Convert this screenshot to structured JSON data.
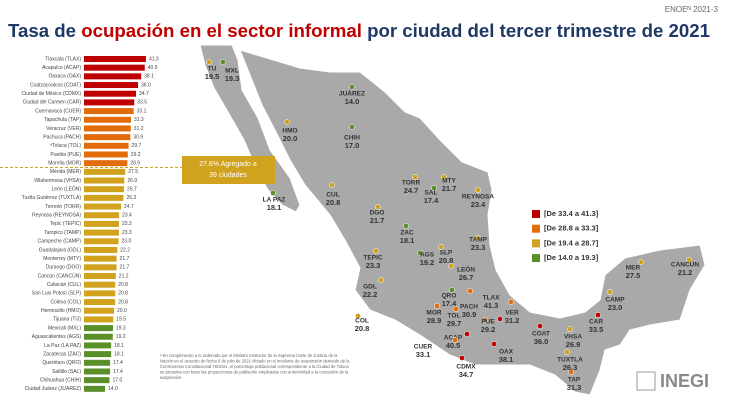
{
  "chart_data": {
    "type": "bar",
    "title_parts": [
      "Tasa de ",
      "ocupación en el sector informal",
      " por ciudad del tercer trimestre de 2021"
    ],
    "source_tag": "ENOEᴺ 2021-3",
    "categories": [
      "Tlaxcala (TLAX)",
      "Acapulco (ACAP)",
      "Oaxaca (OAX)",
      "Coatzacoalcos (COAT)",
      "Ciudad de México (CDMX)",
      "Ciudad del Carmen (CAR)",
      "Cuernavaca (CUER)",
      "Tapachula (TAP)",
      "Veracruz (VER)",
      "Pachuca (PACH)",
      "ªToluca (TOL)",
      "Puebla (PUE)",
      "Morelia (MOR)",
      "Mérida (MER)",
      "Villahermosa (VHSA)",
      "León (LEÓN)",
      "Tuxtla Gutiérrez (TUXTLA)",
      "Torreón (TORR)",
      "Reynosa (REYNOSA)",
      "Tepic (TEPIC)",
      "Tampico (TAMP)",
      "Campeche (CAMP)",
      "Guadalajara (GDL)",
      "Monterrey (MTY)",
      "Durango (DGO)",
      "Cancún (CANCÚN)",
      "Culiacán (CUL)",
      "San Luis Potosí (SLP)",
      "Colima (COL)",
      "Hermosillo (HMO)",
      "Tijuana (TIJ)",
      "Mexicali (MXL)",
      "Aguascalientes (AGS)",
      "La Paz (LA PAZ)",
      "Zacatecas (ZAC)",
      "Querétaro (QRO)",
      "Saltillo (SAL)",
      "Chihuahua (CHIH)",
      "Ciudad Juárez (JUAREZ)"
    ],
    "values": [
      41.3,
      40.5,
      38.1,
      36.0,
      34.7,
      33.5,
      33.1,
      31.3,
      31.2,
      30.9,
      29.7,
      29.2,
      28.9,
      27.5,
      26.9,
      26.7,
      26.3,
      24.7,
      23.4,
      23.3,
      23.3,
      23.0,
      22.2,
      21.7,
      21.7,
      21.2,
      20.8,
      20.8,
      20.8,
      20.0,
      19.5,
      19.3,
      19.2,
      18.1,
      18.1,
      17.4,
      17.4,
      17.0,
      14.0
    ],
    "value_labels": [
      "41.3",
      "40.5",
      "38.1",
      "36.0",
      "34.7",
      "33.5",
      "33.1",
      "31.3",
      "31.2",
      "30.9",
      "29.7",
      "29.2",
      "28.9",
      "27.5",
      "26.9",
      "26.7",
      "26.3",
      "24.7",
      "23.4",
      "23.3",
      "23.3",
      "23.0",
      "22.2",
      "21.7",
      "21.7",
      "21.2",
      "20.8",
      "20.8",
      "20.8",
      "20.0",
      "19.5",
      "19.3",
      "19.2",
      "18.1",
      "18.1",
      "17.4",
      "17.4",
      "17.0",
      "14.0"
    ],
    "colors": [
      "#c00000",
      "#c00000",
      "#c00000",
      "#c00000",
      "#c00000",
      "#c00000",
      "#e36c0a",
      "#e36c0a",
      "#e36c0a",
      "#e36c0a",
      "#e36c0a",
      "#e36c0a",
      "#e36c0a",
      "#d1a21e",
      "#d1a21e",
      "#d1a21e",
      "#d1a21e",
      "#d1a21e",
      "#d1a21e",
      "#d1a21e",
      "#d1a21e",
      "#d1a21e",
      "#d1a21e",
      "#d1a21e",
      "#d1a21e",
      "#d1a21e",
      "#d1a21e",
      "#d1a21e",
      "#d1a21e",
      "#d1a21e",
      "#d1a21e",
      "#5a8f29",
      "#5a8f29",
      "#5a8f29",
      "#5a8f29",
      "#5a8f29",
      "#5a8f29",
      "#5a8f29",
      "#5a8f29"
    ],
    "annotation": [
      "27.6% Agregado a",
      "39 ciudades"
    ],
    "legend": [
      {
        "label": "[De 33.4 a 41.3]",
        "color": "#c00000"
      },
      {
        "label": "[De 28.8 a 33.3]",
        "color": "#e36c0a"
      },
      {
        "label": "[De 19.4 a 28.7]",
        "color": "#d1a21e"
      },
      {
        "label": "[De 14.0 a 19.3]",
        "color": "#5a8f29"
      }
    ],
    "map_codes": [
      "TLAX",
      "ACAP",
      "OAX",
      "COAT",
      "CDMX",
      "CAR",
      "CUER",
      "TAP",
      "VER",
      "PACH",
      "TOL",
      "PUE",
      "MOR",
      "MER",
      "VHSA",
      "LEÓN",
      "TUXTLA",
      "TORR",
      "REYNOSA",
      "TEPIC",
      "TAMP",
      "CAMP",
      "GDL",
      "MTY",
      "DGO",
      "CANCÚN",
      "CUL",
      "SLP",
      "COL",
      "HMO",
      "TU",
      "MXL",
      "AGS",
      "LA PAZ",
      "ZAC",
      "QRO",
      "SAL",
      "CHIH",
      "JUÁREZ"
    ],
    "footnote": [
      "ª En cumplimiento a lo ordenado por el Ministro Instructor de la Suprema Corte de Justicia de la",
      "Nación en el acuerdo de fecha 6 de julio de 2021 dictado en el incidente de suspensión derivado de la",
      "Controversia Constitucional 78/2021, el porcentaje poblacional correspondiente a la Ciudad de Toluca",
      "se presenta con base las proyecciones de población empleadas con anterioridad a la concesión de la",
      "suspensión."
    ],
    "logo": "INEGI"
  }
}
